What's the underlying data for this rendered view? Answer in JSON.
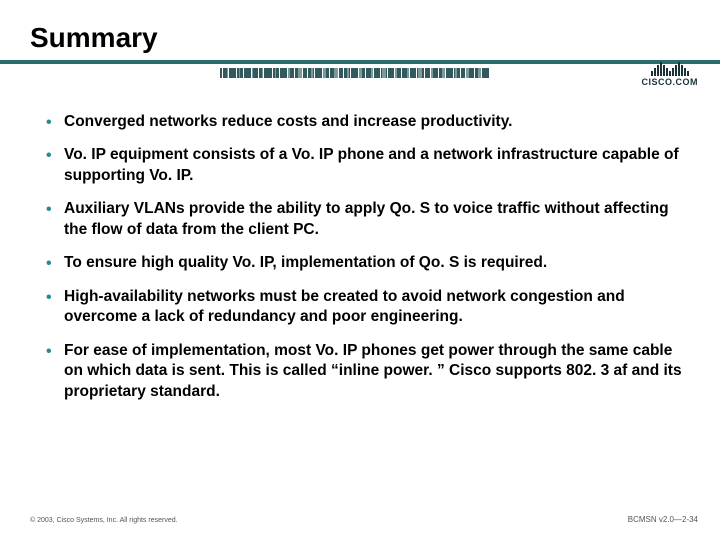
{
  "title": "Summary",
  "accent_color": "#2b6d6f",
  "bullet_color": "#2b8b8e",
  "text_color": "#000000",
  "logo_text": "CISCO.COM",
  "bullets": [
    "Converged networks reduce costs and increase productivity.",
    "Vo. IP equipment consists of a Vo. IP phone and a network infrastructure capable of supporting Vo. IP.",
    "Auxiliary VLANs provide the ability to apply Qo. S to voice traffic without affecting the flow of data from the client PC.",
    "To ensure high quality Vo. IP, implementation of Qo. S is required.",
    "High-availability networks must be created to avoid network congestion and overcome a lack of redundancy and poor engineering.",
    "For ease of implementation, most Vo. IP phones get power through the same cable on which data is sent. This is called “inline power. ”  Cisco supports 802. 3 af and its proprietary standard."
  ],
  "footer": {
    "copyright": "© 2003, Cisco Systems, Inc. All rights reserved.",
    "slide_ref": "BCMSN v2.0—2-34"
  },
  "barcode_widths": [
    2,
    1,
    3,
    1,
    2,
    4,
    1,
    2,
    1,
    3,
    2,
    1,
    4,
    1,
    2,
    3,
    1,
    2,
    1,
    3,
    4,
    1,
    2,
    1,
    3,
    2,
    1,
    4,
    2,
    1,
    3,
    1,
    2,
    4,
    1,
    2,
    1,
    3,
    2,
    1,
    4,
    1,
    2,
    3,
    1,
    2,
    1,
    3,
    4,
    1,
    2,
    1,
    3,
    2,
    1,
    4,
    2,
    1,
    3,
    1,
    2,
    4,
    1,
    2,
    1,
    3,
    2,
    1,
    4,
    1,
    2,
    3,
    1,
    2,
    1,
    3,
    4,
    1,
    2,
    1,
    3,
    2,
    1,
    4,
    2,
    1,
    3,
    1,
    2,
    4,
    1,
    2,
    1,
    3,
    2,
    1,
    4,
    1,
    2,
    3,
    1,
    2,
    1,
    3,
    4,
    1,
    2,
    1,
    3,
    2,
    1,
    4
  ],
  "cisco_bar_heights": [
    5,
    8,
    11,
    14,
    11,
    8,
    5,
    8,
    11,
    14,
    11,
    8,
    5
  ]
}
